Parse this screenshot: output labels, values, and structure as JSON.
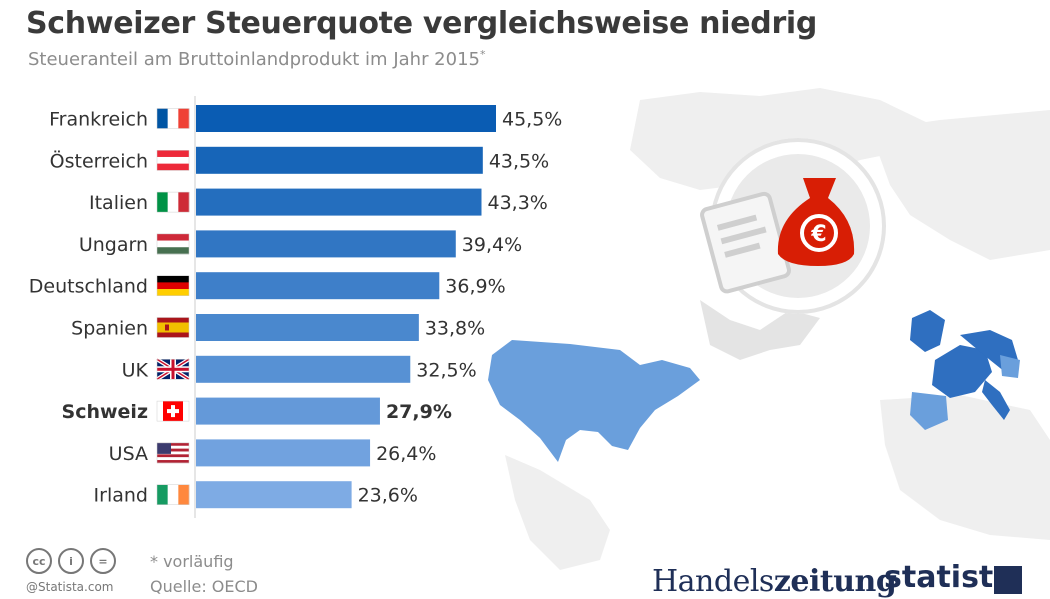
{
  "title": "Schweizer Steuerquote vergleichsweise niedrig",
  "subtitle": "Steueranteil am Bruttoinlandprodukt im Jahr 2015",
  "subtitle_mark": "*",
  "footnote": "* vorläufig",
  "source": "Quelle: OECD",
  "credit": "@Statista.com",
  "license_icons": [
    "cc",
    "by",
    "nd"
  ],
  "license_icon_labels": [
    "cc",
    "i",
    "="
  ],
  "logos": {
    "publisher": "Handelszeitung",
    "publisher_part1": "Handels",
    "publisher_part2": "zeitung",
    "brand": "statista"
  },
  "colors": {
    "bar_dark": "#0a5cb3",
    "bar_light": "#7eabe4",
    "map_highlight_usa": "#6a9fdc",
    "map_highlight_eu": "#2f6fc0",
    "money_bag": "#d81e05",
    "map_base": "#eeeeee"
  },
  "chart_data": {
    "type": "bar",
    "orientation": "horizontal",
    "categories": [
      "Frankreich",
      "Österreich",
      "Italien",
      "Ungarn",
      "Deutschland",
      "Spanien",
      "UK",
      "Schweiz",
      "USA",
      "Irland"
    ],
    "values": [
      45.5,
      43.5,
      43.3,
      39.4,
      36.9,
      33.8,
      32.5,
      27.9,
      26.4,
      23.6
    ],
    "value_labels": [
      "45,5%",
      "43,5%",
      "43,3%",
      "39,4%",
      "36,9%",
      "33,8%",
      "32,5%",
      "27,9%",
      "26,4%",
      "23,6%"
    ],
    "highlight": "Schweiz",
    "flags": [
      "flag-france-icon",
      "flag-austria-icon",
      "flag-italy-icon",
      "flag-hungary-icon",
      "flag-germany-icon",
      "flag-spain-icon",
      "flag-uk-icon",
      "flag-switzerland-icon",
      "flag-usa-icon",
      "flag-ireland-icon"
    ],
    "unit": "%",
    "xlim": [
      0,
      45.5
    ],
    "grid": false,
    "legend": "none"
  }
}
